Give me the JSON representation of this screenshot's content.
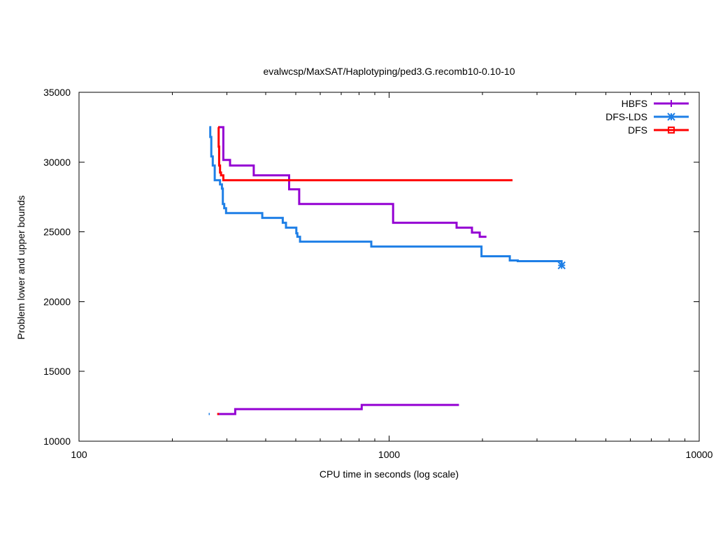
{
  "chart_data": {
    "type": "line",
    "title": "evalwcsp/MaxSAT/Haplotyping/ped3.G.recomb10-0.10-10",
    "xlabel": "CPU time in seconds (log scale)",
    "ylabel": "Problem lower and upper bounds",
    "xscale": "log",
    "xlim": [
      100,
      10000
    ],
    "ylim": [
      10000,
      35000
    ],
    "xticks": [
      100,
      1000,
      10000
    ],
    "xtick_labels": [
      "100",
      "1000",
      "10000"
    ],
    "yticks": [
      10000,
      15000,
      20000,
      25000,
      30000,
      35000
    ],
    "ytick_labels": [
      "10000",
      "15000",
      "20000",
      "25000",
      "30000",
      "35000"
    ],
    "grid": false,
    "legend_position": "top-right",
    "series": [
      {
        "name": "HBFS",
        "color": "#9400d3",
        "marker": "plus",
        "upper": [
          [
            283,
            32500
          ],
          [
            292,
            32500
          ],
          [
            292,
            30150
          ],
          [
            307,
            30150
          ],
          [
            307,
            29750
          ],
          [
            366,
            29750
          ],
          [
            366,
            29050
          ],
          [
            476,
            29050
          ],
          [
            476,
            28050
          ],
          [
            513,
            28050
          ],
          [
            513,
            27000
          ],
          [
            1030,
            27000
          ],
          [
            1030,
            25650
          ],
          [
            1650,
            25650
          ],
          [
            1650,
            25300
          ],
          [
            1850,
            25300
          ],
          [
            1850,
            24950
          ],
          [
            1960,
            24950
          ],
          [
            1960,
            24650
          ],
          [
            2060,
            24650
          ]
        ],
        "lower": [
          [
            280,
            11950
          ],
          [
            319,
            11950
          ],
          [
            319,
            12300
          ],
          [
            816,
            12300
          ],
          [
            816,
            12600
          ],
          [
            1680,
            12600
          ]
        ]
      },
      {
        "name": "DFS-LDS",
        "color": "#1e7fe6",
        "marker": "star",
        "upper": [
          [
            263,
            32500
          ],
          [
            265,
            32500
          ],
          [
            265,
            31800
          ],
          [
            267,
            31800
          ],
          [
            267,
            30400
          ],
          [
            270,
            30400
          ],
          [
            270,
            29750
          ],
          [
            274,
            29750
          ],
          [
            274,
            28700
          ],
          [
            285,
            28700
          ],
          [
            285,
            28400
          ],
          [
            289,
            28400
          ],
          [
            289,
            28100
          ],
          [
            291,
            28100
          ],
          [
            291,
            27000
          ],
          [
            294,
            27000
          ],
          [
            294,
            26700
          ],
          [
            298,
            26700
          ],
          [
            298,
            26350
          ],
          [
            390,
            26350
          ],
          [
            390,
            26000
          ],
          [
            454,
            26000
          ],
          [
            454,
            25650
          ],
          [
            465,
            25650
          ],
          [
            465,
            25300
          ],
          [
            502,
            25300
          ],
          [
            502,
            24900
          ],
          [
            506,
            24900
          ],
          [
            506,
            24650
          ],
          [
            516,
            24650
          ],
          [
            516,
            24300
          ],
          [
            876,
            24300
          ],
          [
            876,
            23950
          ],
          [
            1985,
            23950
          ],
          [
            1985,
            23250
          ],
          [
            2450,
            23250
          ],
          [
            2450,
            22950
          ],
          [
            2600,
            22950
          ],
          [
            2600,
            22900
          ],
          [
            3600,
            22900
          ],
          [
            3600,
            22600
          ]
        ],
        "lower": [
          [
            262,
            11950
          ],
          [
            264,
            11950
          ]
        ],
        "markers": [
          [
            3600,
            22600
          ]
        ]
      },
      {
        "name": "DFS",
        "color": "#ff0000",
        "marker": "square",
        "upper": [
          [
            281,
            32500
          ],
          [
            282,
            32500
          ],
          [
            282,
            31100
          ],
          [
            283,
            31100
          ],
          [
            283,
            29750
          ],
          [
            285,
            29750
          ],
          [
            285,
            29250
          ],
          [
            287,
            29250
          ],
          [
            287,
            29050
          ],
          [
            292,
            29050
          ],
          [
            292,
            28700
          ],
          [
            2500,
            28700
          ]
        ],
        "lower": [
          [
            279,
            11950
          ],
          [
            283,
            11950
          ]
        ]
      }
    ]
  }
}
